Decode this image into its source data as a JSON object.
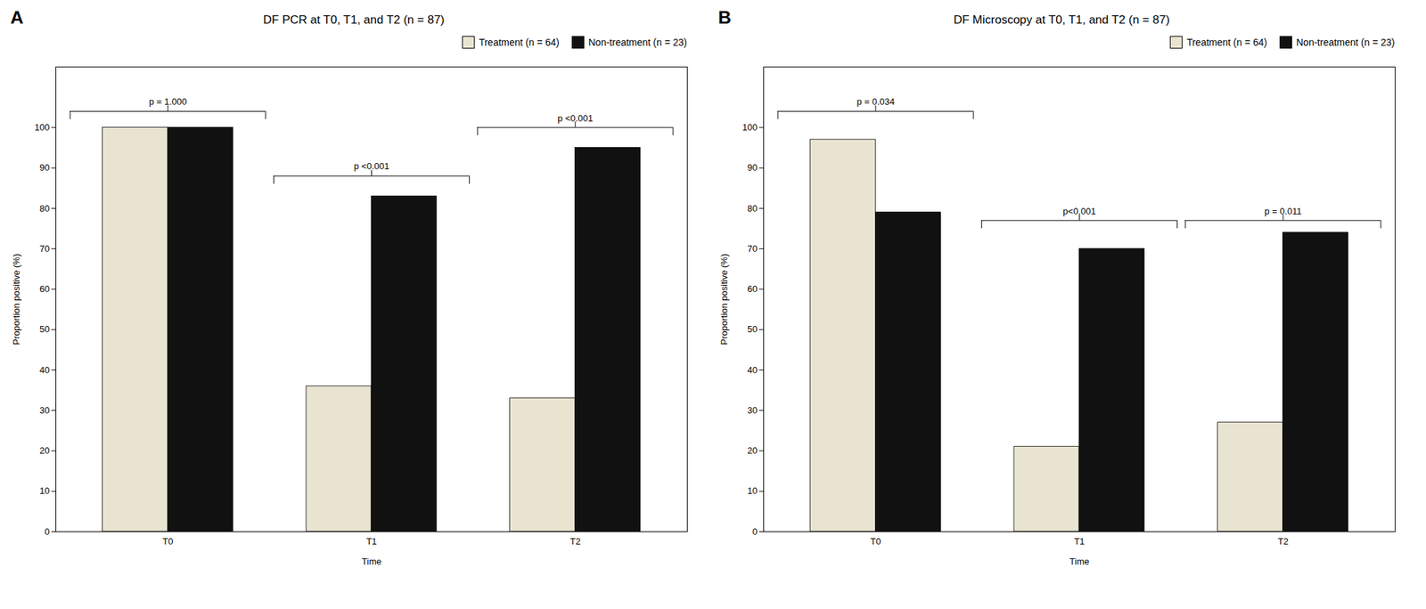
{
  "chart_data": [
    {
      "type": "bar",
      "panel_label": "A",
      "title": "DF PCR at T0, T1, and T2 (n = 87)",
      "xlabel": "Time",
      "ylabel": "Proportion positive (%)",
      "categories": [
        "T0",
        "T1",
        "T2"
      ],
      "series": [
        {
          "name": "Treatment (n = 64)",
          "color": "#e8e4d0",
          "values": [
            100,
            36,
            33
          ]
        },
        {
          "name": "Non-treatment (n = 23)",
          "color": "#111111",
          "values": [
            100,
            83,
            95
          ]
        }
      ],
      "annotations": [
        {
          "text": "p = 1.000",
          "x": "T0",
          "y": 104
        },
        {
          "text": "p <0.001",
          "x": "T1",
          "y": 88
        },
        {
          "text": "p <0.001",
          "x": "T2",
          "y": 100
        }
      ],
      "ylim": [
        0,
        115
      ],
      "yticks": [
        0,
        10,
        20,
        30,
        40,
        50,
        60,
        70,
        80,
        90,
        100
      ],
      "grid": false,
      "legend": "upper right"
    },
    {
      "type": "bar",
      "panel_label": "B",
      "title": "DF Microscopy at T0, T1, and T2 (n = 87)",
      "xlabel": "Time",
      "ylabel": "Proportion positive (%)",
      "categories": [
        "T0",
        "T1",
        "T2"
      ],
      "series": [
        {
          "name": "Treatment (n = 64)",
          "color": "#e8e4d0",
          "values": [
            97,
            21,
            27
          ]
        },
        {
          "name": "Non-treatment (n = 23)",
          "color": "#111111",
          "values": [
            79,
            70,
            74
          ]
        }
      ],
      "annotations": [
        {
          "text": "p = 0.034",
          "x": "T0",
          "y": 104
        },
        {
          "text": "p<0.001",
          "x": "T1",
          "y": 77
        },
        {
          "text": "p = 0.011",
          "x": "T2",
          "y": 77
        }
      ],
      "ylim": [
        0,
        115
      ],
      "yticks": [
        0,
        10,
        20,
        30,
        40,
        50,
        60,
        70,
        80,
        90,
        100
      ],
      "grid": false,
      "legend": "upper right"
    }
  ]
}
